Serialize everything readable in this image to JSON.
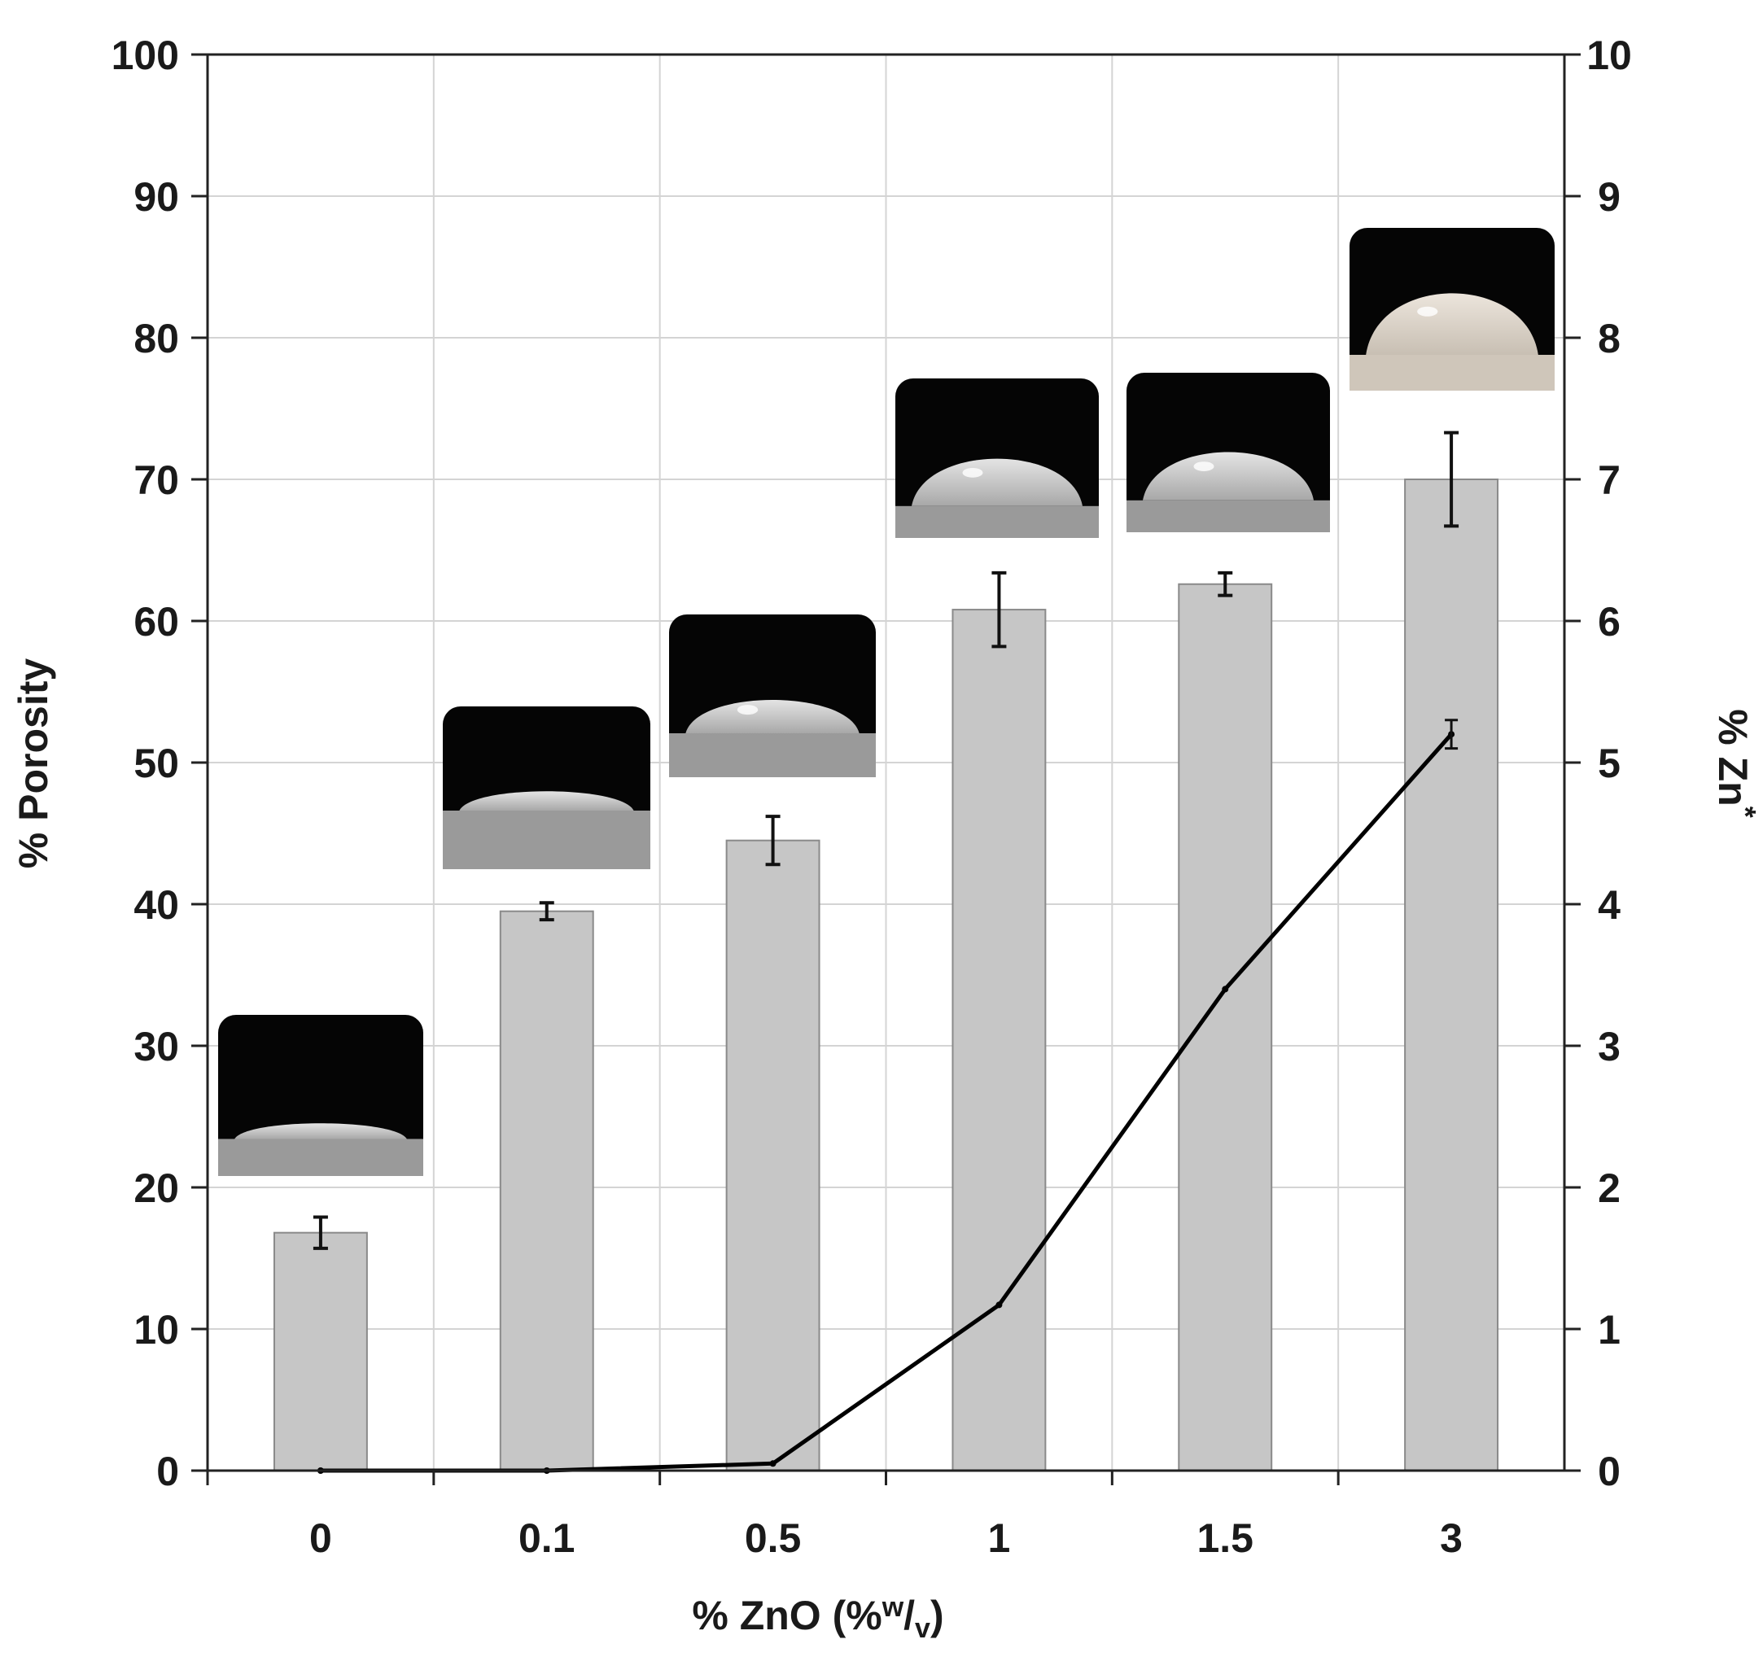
{
  "chart_data": {
    "type": "bar",
    "categories": [
      "0",
      "0.1",
      "0.5",
      "1",
      "1.5",
      "3"
    ],
    "xlabel": {
      "prefix": "% ZnO (%",
      "numerator": "w",
      "slash": "/",
      "denominator": "v",
      "suffix": ")"
    },
    "ylabel_left": "% Porosity",
    "ylabel_right": {
      "base": "% Zn",
      "superscript": "*"
    },
    "ylim_left": [
      0,
      100
    ],
    "ylim_right": [
      0,
      10
    ],
    "yticks_left": [
      "0",
      "10",
      "20",
      "30",
      "40",
      "50",
      "60",
      "70",
      "80",
      "90",
      "100"
    ],
    "yticks_right": [
      "0",
      "1",
      "2",
      "3",
      "4",
      "5",
      "6",
      "7",
      "8",
      "9",
      "10"
    ],
    "grid": true,
    "series": [
      {
        "type": "bar",
        "axis": "left",
        "values": [
          16.8,
          39.5,
          44.5,
          60.8,
          62.6,
          70.0
        ],
        "errors": [
          1.1,
          0.6,
          1.7,
          2.6,
          0.8,
          3.3
        ],
        "color": "#c6c6c6"
      },
      {
        "type": "line",
        "axis": "right",
        "values": [
          0.0,
          0.0,
          0.05,
          1.17,
          3.4,
          5.2
        ],
        "errors": [
          0.0,
          0.0,
          0.0,
          0.0,
          0.0,
          0.1
        ],
        "color": "#000000"
      }
    ],
    "inset_images": [
      {
        "category": "0",
        "shape": "flat water droplet"
      },
      {
        "category": "0.1",
        "shape": "flat water droplet"
      },
      {
        "category": "0.5",
        "shape": "low water droplet"
      },
      {
        "category": "1",
        "shape": "rounded water droplet"
      },
      {
        "category": "1.5",
        "shape": "rounded water droplet"
      },
      {
        "category": "3",
        "shape": "hemispherical water droplet"
      }
    ]
  }
}
